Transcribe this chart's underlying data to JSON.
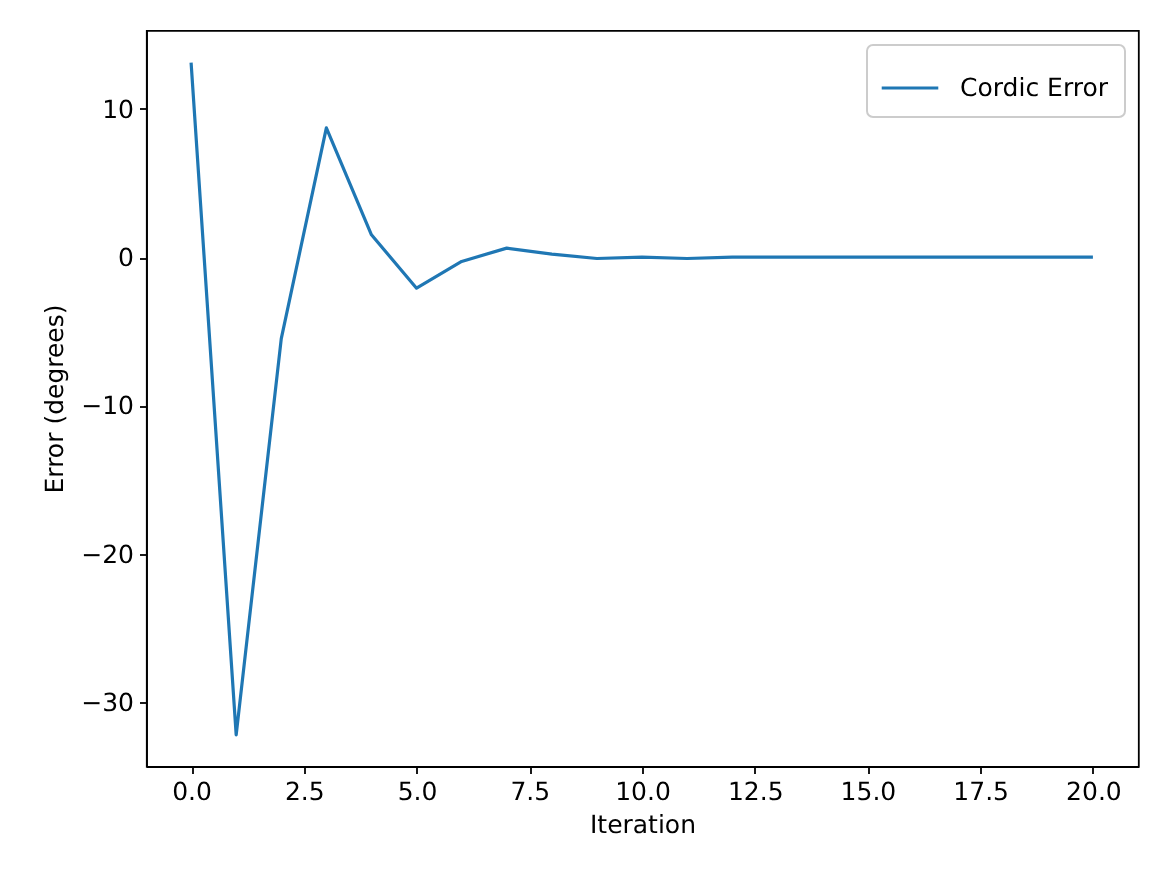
{
  "chart_data": {
    "type": "line",
    "xlabel": "Iteration",
    "ylabel": "Error (degrees)",
    "x": [
      0,
      1,
      2,
      3,
      4,
      5,
      6,
      7,
      8,
      9,
      10,
      11,
      12,
      13,
      14,
      15,
      16,
      17,
      18,
      19,
      20
    ],
    "series": [
      {
        "name": "Cordic Error",
        "color": "#1f77b4",
        "values": [
          13.1,
          -32.2,
          -5.5,
          8.7,
          1.5,
          -2.1,
          -0.3,
          0.6,
          0.2,
          -0.1,
          0.0,
          -0.1,
          0.0,
          0.0,
          0.0,
          0.0,
          0.0,
          0.0,
          0.0,
          0.0,
          0.0
        ]
      }
    ],
    "xlim": [
      -1,
      21
    ],
    "ylim": [
      -34.3,
      15.3
    ],
    "xticks": [
      {
        "value": 0,
        "label": "0.0"
      },
      {
        "value": 2.5,
        "label": "2.5"
      },
      {
        "value": 5,
        "label": "5.0"
      },
      {
        "value": 7.5,
        "label": "7.5"
      },
      {
        "value": 10,
        "label": "10.0"
      },
      {
        "value": 12.5,
        "label": "12.5"
      },
      {
        "value": 15,
        "label": "15.0"
      },
      {
        "value": 17.5,
        "label": "17.5"
      },
      {
        "value": 20,
        "label": "20.0"
      }
    ],
    "yticks": [
      {
        "value": -30,
        "label": "−30"
      },
      {
        "value": -20,
        "label": "−20"
      },
      {
        "value": -10,
        "label": "−10"
      },
      {
        "value": 0,
        "label": "0"
      },
      {
        "value": 10,
        "label": "10"
      }
    ],
    "legend": "top right",
    "grid": false
  }
}
